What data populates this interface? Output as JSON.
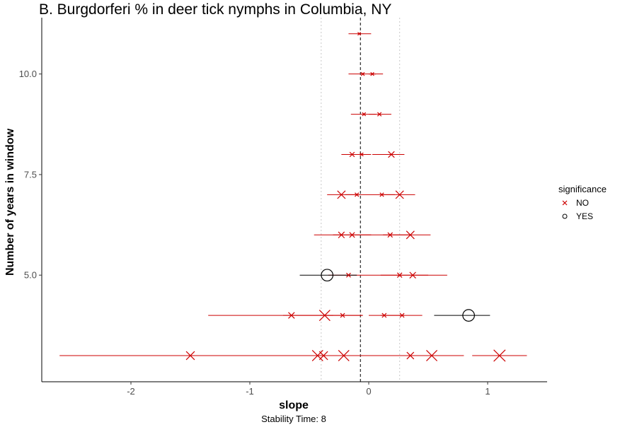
{
  "chart_data": {
    "type": "scatter",
    "title": "B. Burgdorferi % in deer tick nymphs in Columbia, NY",
    "xlabel": "slope",
    "ylabel": "Number of years in window",
    "caption": "Stability Time: 8",
    "xlim": [
      -2.75,
      1.5
    ],
    "ylim": [
      2.35,
      11.4
    ],
    "x_ticks": [
      -2,
      -1,
      0,
      1
    ],
    "x_tick_labels": [
      "-2",
      "-1",
      "0",
      "1"
    ],
    "y_ticks": [
      5.0,
      7.5,
      10.0
    ],
    "y_tick_labels": [
      "5.0",
      "7.5",
      "10.0"
    ],
    "grid": false,
    "reference_lines": {
      "mean_slope": -0.07,
      "lower_bound": -0.4,
      "upper_bound": 0.26
    },
    "legend": {
      "title": "significance",
      "placement": "right",
      "entries": [
        {
          "label": "NO",
          "color": "#cc0000",
          "shape": "x"
        },
        {
          "label": "YES",
          "color": "#000000",
          "shape": "circle"
        }
      ]
    },
    "series": [
      {
        "name": "NO",
        "color": "#cc0000",
        "points": [
          {
            "x": -0.08,
            "y": 11,
            "xmin": -0.17,
            "xmax": 0.02,
            "size": 0.3
          },
          {
            "x": -0.05,
            "y": 10,
            "xmin": -0.17,
            "xmax": 0.12,
            "size": 0.4
          },
          {
            "x": 0.03,
            "y": 10,
            "xmin": 0.0,
            "xmax": 0.06,
            "size": 0.4
          },
          {
            "x": -0.04,
            "y": 9,
            "xmin": -0.15,
            "xmax": 0.06,
            "size": 0.4
          },
          {
            "x": 0.09,
            "y": 9,
            "xmin": 0.0,
            "xmax": 0.19,
            "size": 0.5
          },
          {
            "x": -0.14,
            "y": 8,
            "xmin": -0.23,
            "xmax": -0.04,
            "size": 0.7
          },
          {
            "x": -0.06,
            "y": 8,
            "xmin": -0.14,
            "xmax": 0.02,
            "size": 0.4
          },
          {
            "x": 0.19,
            "y": 8,
            "xmin": 0.03,
            "xmax": 0.3,
            "size": 1.0
          },
          {
            "x": -0.23,
            "y": 7,
            "xmin": -0.35,
            "xmax": -0.1,
            "size": 1.4
          },
          {
            "x": -0.1,
            "y": 7,
            "xmin": -0.2,
            "xmax": 0.0,
            "size": 0.5
          },
          {
            "x": 0.11,
            "y": 7,
            "xmin": 0.0,
            "xmax": 0.22,
            "size": 0.5
          },
          {
            "x": 0.26,
            "y": 7,
            "xmin": 0.12,
            "xmax": 0.39,
            "size": 1.4
          },
          {
            "x": -0.23,
            "y": 6,
            "xmin": -0.46,
            "xmax": 0.0,
            "size": 1.0
          },
          {
            "x": -0.14,
            "y": 6,
            "xmin": -0.3,
            "xmax": 0.02,
            "size": 0.8
          },
          {
            "x": 0.18,
            "y": 6,
            "xmin": 0.0,
            "xmax": 0.35,
            "size": 0.7
          },
          {
            "x": 0.35,
            "y": 6,
            "xmin": 0.12,
            "xmax": 0.52,
            "size": 1.4
          },
          {
            "x": -0.17,
            "y": 5,
            "xmin": -0.34,
            "xmax": 0.0,
            "size": 0.6
          },
          {
            "x": 0.26,
            "y": 5,
            "xmin": 0.0,
            "xmax": 0.5,
            "size": 0.7
          },
          {
            "x": 0.37,
            "y": 5,
            "xmin": 0.1,
            "xmax": 0.66,
            "size": 1.0
          },
          {
            "x": -0.65,
            "y": 4,
            "xmin": -1.35,
            "xmax": -0.3,
            "size": 1.0
          },
          {
            "x": -0.37,
            "y": 4,
            "xmin": -0.72,
            "xmax": -0.05,
            "size": 2.0
          },
          {
            "x": -0.22,
            "y": 4,
            "xmin": -0.38,
            "xmax": -0.05,
            "size": 0.6
          },
          {
            "x": 0.13,
            "y": 4,
            "xmin": 0.0,
            "xmax": 0.3,
            "size": 0.6
          },
          {
            "x": 0.28,
            "y": 4,
            "xmin": 0.1,
            "xmax": 0.45,
            "size": 0.6
          },
          {
            "x": -1.5,
            "y": 3,
            "xmin": -2.6,
            "xmax": -0.5,
            "size": 1.5
          },
          {
            "x": -0.43,
            "y": 3,
            "xmin": -0.9,
            "xmax": 0.0,
            "size": 2.0
          },
          {
            "x": -0.38,
            "y": 3,
            "xmin": -0.7,
            "xmax": 0.0,
            "size": 1.5
          },
          {
            "x": -0.21,
            "y": 3,
            "xmin": -0.5,
            "xmax": 0.1,
            "size": 2.0
          },
          {
            "x": 0.35,
            "y": 3,
            "xmin": 0.0,
            "xmax": 0.7,
            "size": 1.2
          },
          {
            "x": 0.53,
            "y": 3,
            "xmin": 0.2,
            "xmax": 0.8,
            "size": 2.0
          },
          {
            "x": 1.1,
            "y": 3,
            "xmin": 0.87,
            "xmax": 1.33,
            "size": 2.2
          }
        ]
      },
      {
        "name": "YES",
        "color": "#000000",
        "points": [
          {
            "x": -0.35,
            "y": 5,
            "xmin": -0.58,
            "xmax": -0.1,
            "size": 1.5
          },
          {
            "x": 0.84,
            "y": 4,
            "xmin": 0.55,
            "xmax": 1.02,
            "size": 1.5
          }
        ]
      }
    ]
  }
}
